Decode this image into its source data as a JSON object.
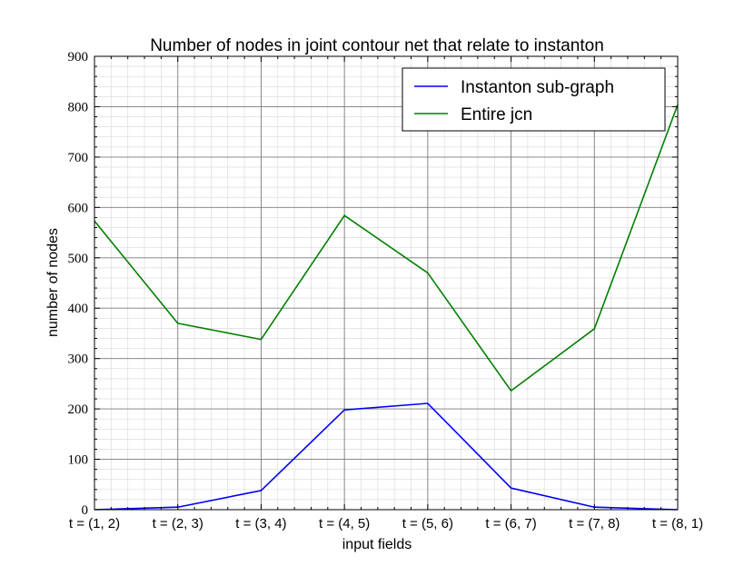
{
  "chart_data": {
    "type": "line",
    "title": "Number of nodes in joint contour net that relate to instanton",
    "xlabel": "input fields",
    "ylabel": "number of nodes",
    "categories": [
      "t = (1, 2)",
      "t = (2, 3)",
      "t = (3, 4)",
      "t = (4, 5)",
      "t = (5, 6)",
      "t = (6, 7)",
      "t = (7, 8)",
      "t = (8, 1)"
    ],
    "ylim": [
      0,
      900
    ],
    "yticks": [
      "0",
      "100",
      "200",
      "300",
      "400",
      "500",
      "600",
      "700",
      "800",
      "900"
    ],
    "grid": true,
    "minor_grid": true,
    "legend_position": "top-right",
    "series": [
      {
        "name": "Instanton sub-graph",
        "color": "#0000ff",
        "values": [
          0,
          5,
          38,
          198,
          211,
          43,
          5,
          0
        ]
      },
      {
        "name": "Entire jcn",
        "color": "#008000",
        "values": [
          573,
          370,
          338,
          584,
          470,
          236,
          359,
          804
        ]
      }
    ]
  }
}
